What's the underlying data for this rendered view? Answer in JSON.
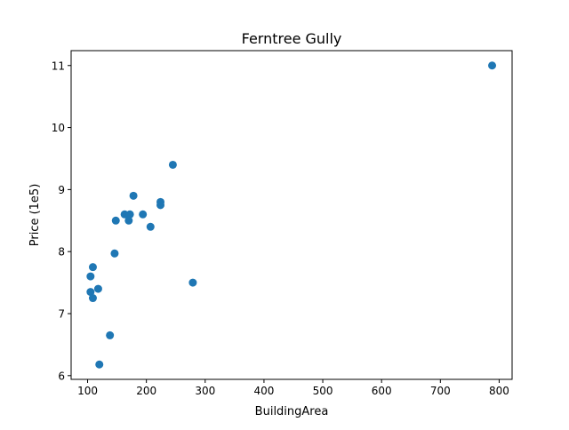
{
  "chart_data": {
    "type": "scatter",
    "title": "Ferntree Gully",
    "xlabel": "BuildingArea",
    "ylabel": "Price (1e5)",
    "xlim": [
      72,
      822
    ],
    "ylim": [
      5.94,
      11.24
    ],
    "xticks": [
      100,
      200,
      300,
      400,
      500,
      600,
      700,
      800
    ],
    "yticks": [
      6,
      7,
      8,
      9,
      10,
      11
    ],
    "grid": false,
    "marker_color": "#1f77b4",
    "series": [
      {
        "x": [
          788,
          245,
          178,
          224,
          224,
          163,
          172,
          194,
          148,
          170,
          207,
          146,
          109,
          105,
          279,
          118,
          105,
          109,
          138,
          120
        ],
        "y": [
          11.0,
          9.4,
          8.9,
          8.8,
          8.75,
          8.6,
          8.6,
          8.6,
          8.5,
          8.5,
          8.4,
          7.97,
          7.75,
          7.6,
          7.5,
          7.4,
          7.35,
          7.25,
          6.65,
          6.18
        ]
      }
    ]
  }
}
